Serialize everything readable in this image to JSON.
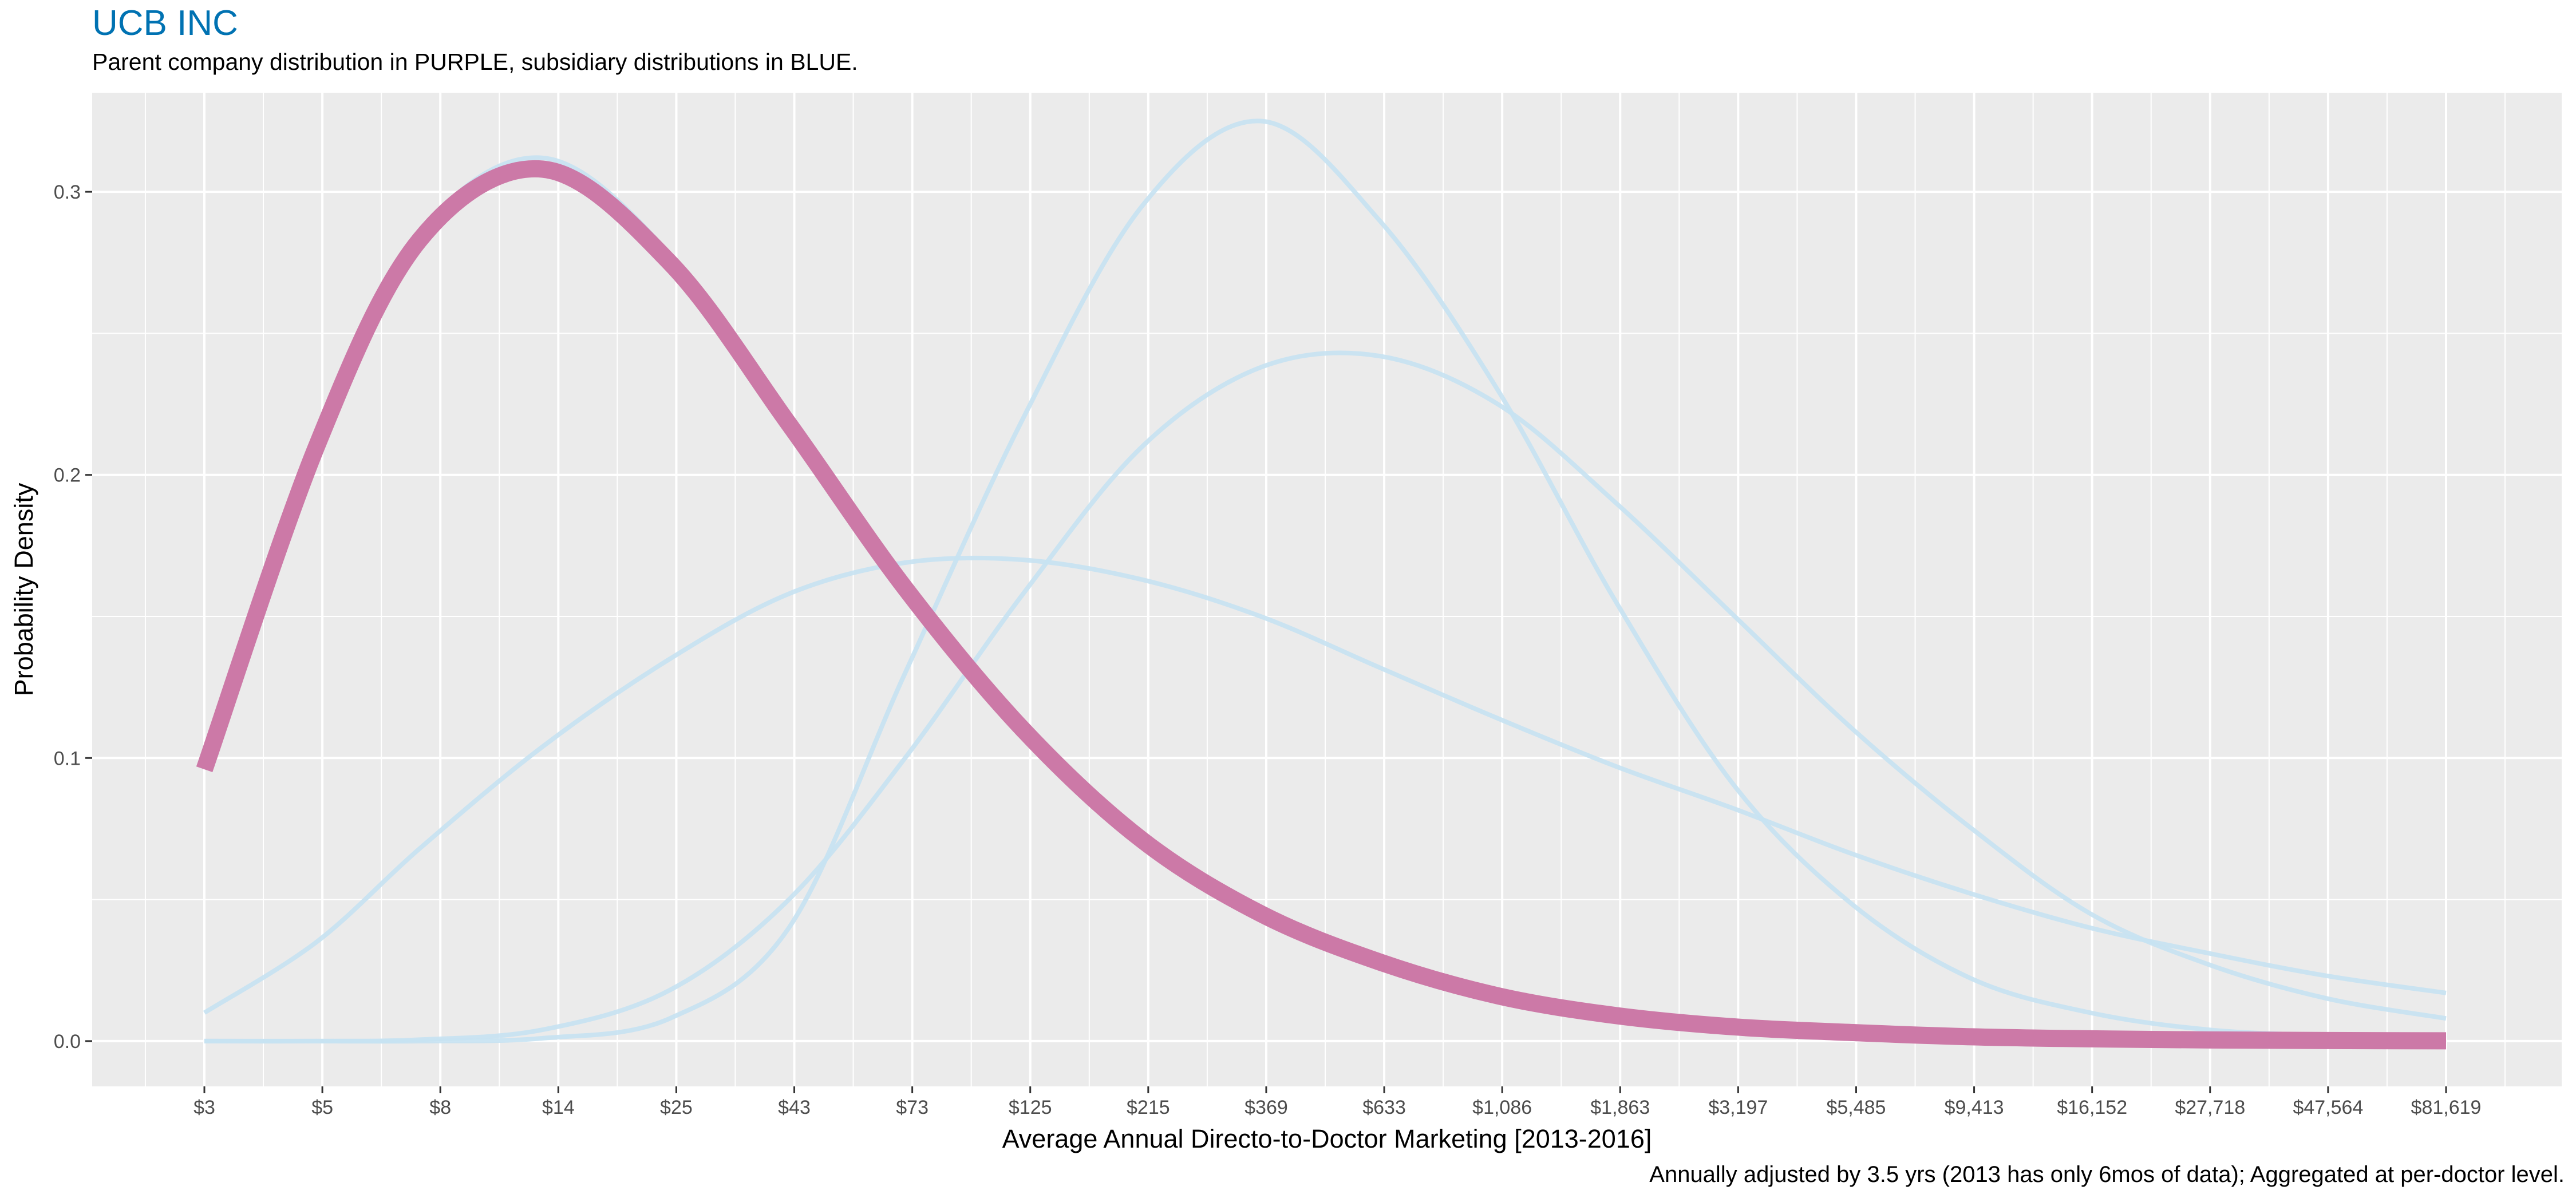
{
  "chart_data": {
    "type": "line",
    "title": "UCB INC",
    "subtitle": "Parent company distribution in PURPLE, subsidiary distributions in BLUE.",
    "caption": "Annually adjusted by 3.5 yrs (2013 has only 6mos of data); Aggregated at per-doctor level.",
    "xlabel": "Average Annual Directo-to-Doctor Marketing [2013-2016]",
    "ylabel": "Probability Density",
    "x_scale": "log",
    "x_ticks": [
      "$3",
      "$5",
      "$8",
      "$14",
      "$25",
      "$43",
      "$73",
      "$125",
      "$215",
      "$369",
      "$633",
      "$1,086",
      "$1,863",
      "$3,197",
      "$5,485",
      "$9,413",
      "$16,152",
      "$27,718",
      "$47,564",
      "$81,619"
    ],
    "y_ticks": [
      "0.0",
      "0.1",
      "0.2",
      "0.3"
    ],
    "ylim": [
      -0.016,
      0.335
    ],
    "grid": true,
    "legend": "none",
    "colors": {
      "parent": "#CC79A7",
      "subsidiary": "#C6E2F2",
      "panel": "#EBEBEB",
      "grid": "#FFFFFF",
      "title": "#0072B2"
    },
    "series": [
      {
        "role": "parent",
        "x": [
          3,
          5,
          8,
          14,
          25,
          43,
          73,
          125,
          215,
          369,
          633,
          1086,
          1863,
          3197,
          5485,
          9413,
          16152,
          27718,
          47564,
          81619
        ],
        "values": [
          0.096,
          0.21,
          0.283,
          0.308,
          0.275,
          0.218,
          0.16,
          0.11,
          0.071,
          0.045,
          0.028,
          0.016,
          0.009,
          0.005,
          0.003,
          0.0015,
          0.0008,
          0.0004,
          0.0002,
          0.0001
        ]
      },
      {
        "role": "subsidiary",
        "x": [
          3,
          5,
          8,
          14,
          25,
          43,
          73,
          125,
          215,
          369,
          633,
          1086,
          1863,
          3197,
          5485,
          9413,
          16152,
          27718,
          47564,
          81619
        ],
        "values": [
          0.096,
          0.21,
          0.285,
          0.312,
          0.278,
          0.218,
          0.16,
          0.11,
          0.071,
          0.045,
          0.027,
          0.016,
          0.009,
          0.005,
          0.003,
          0.0015,
          0.0008,
          0.0004,
          0.0002,
          0.0001
        ]
      },
      {
        "role": "subsidiary",
        "x": [
          3,
          5,
          8,
          14,
          25,
          43,
          73,
          125,
          215,
          369,
          633,
          1086,
          1863,
          3197,
          5485,
          9413,
          16152,
          27718,
          47564,
          81619
        ],
        "values": [
          0.01,
          0.035,
          0.068,
          0.104,
          0.135,
          0.158,
          0.169,
          0.17,
          0.163,
          0.15,
          0.132,
          0.114,
          0.097,
          0.082,
          0.066,
          0.052,
          0.04,
          0.031,
          0.023,
          0.017
        ]
      },
      {
        "role": "subsidiary",
        "x": [
          3,
          5,
          8,
          14,
          25,
          43,
          73,
          125,
          215,
          369,
          633,
          1086,
          1863,
          3197,
          5485,
          9413,
          16152,
          27718,
          47564,
          81619
        ],
        "values": [
          0,
          0,
          0.0005,
          0.004,
          0.018,
          0.05,
          0.1,
          0.158,
          0.21,
          0.238,
          0.242,
          0.225,
          0.19,
          0.15,
          0.11,
          0.075,
          0.045,
          0.027,
          0.015,
          0.008
        ]
      },
      {
        "role": "subsidiary",
        "x": [
          3,
          5,
          8,
          14,
          25,
          43,
          73,
          125,
          215,
          369,
          633,
          1086,
          1863,
          3197,
          5485,
          9413,
          16152,
          27718,
          47564,
          81619
        ],
        "values": [
          0,
          0,
          0,
          0.001,
          0.008,
          0.04,
          0.13,
          0.22,
          0.295,
          0.325,
          0.29,
          0.23,
          0.155,
          0.09,
          0.048,
          0.022,
          0.01,
          0.004,
          0.002,
          0.001
        ]
      }
    ]
  }
}
